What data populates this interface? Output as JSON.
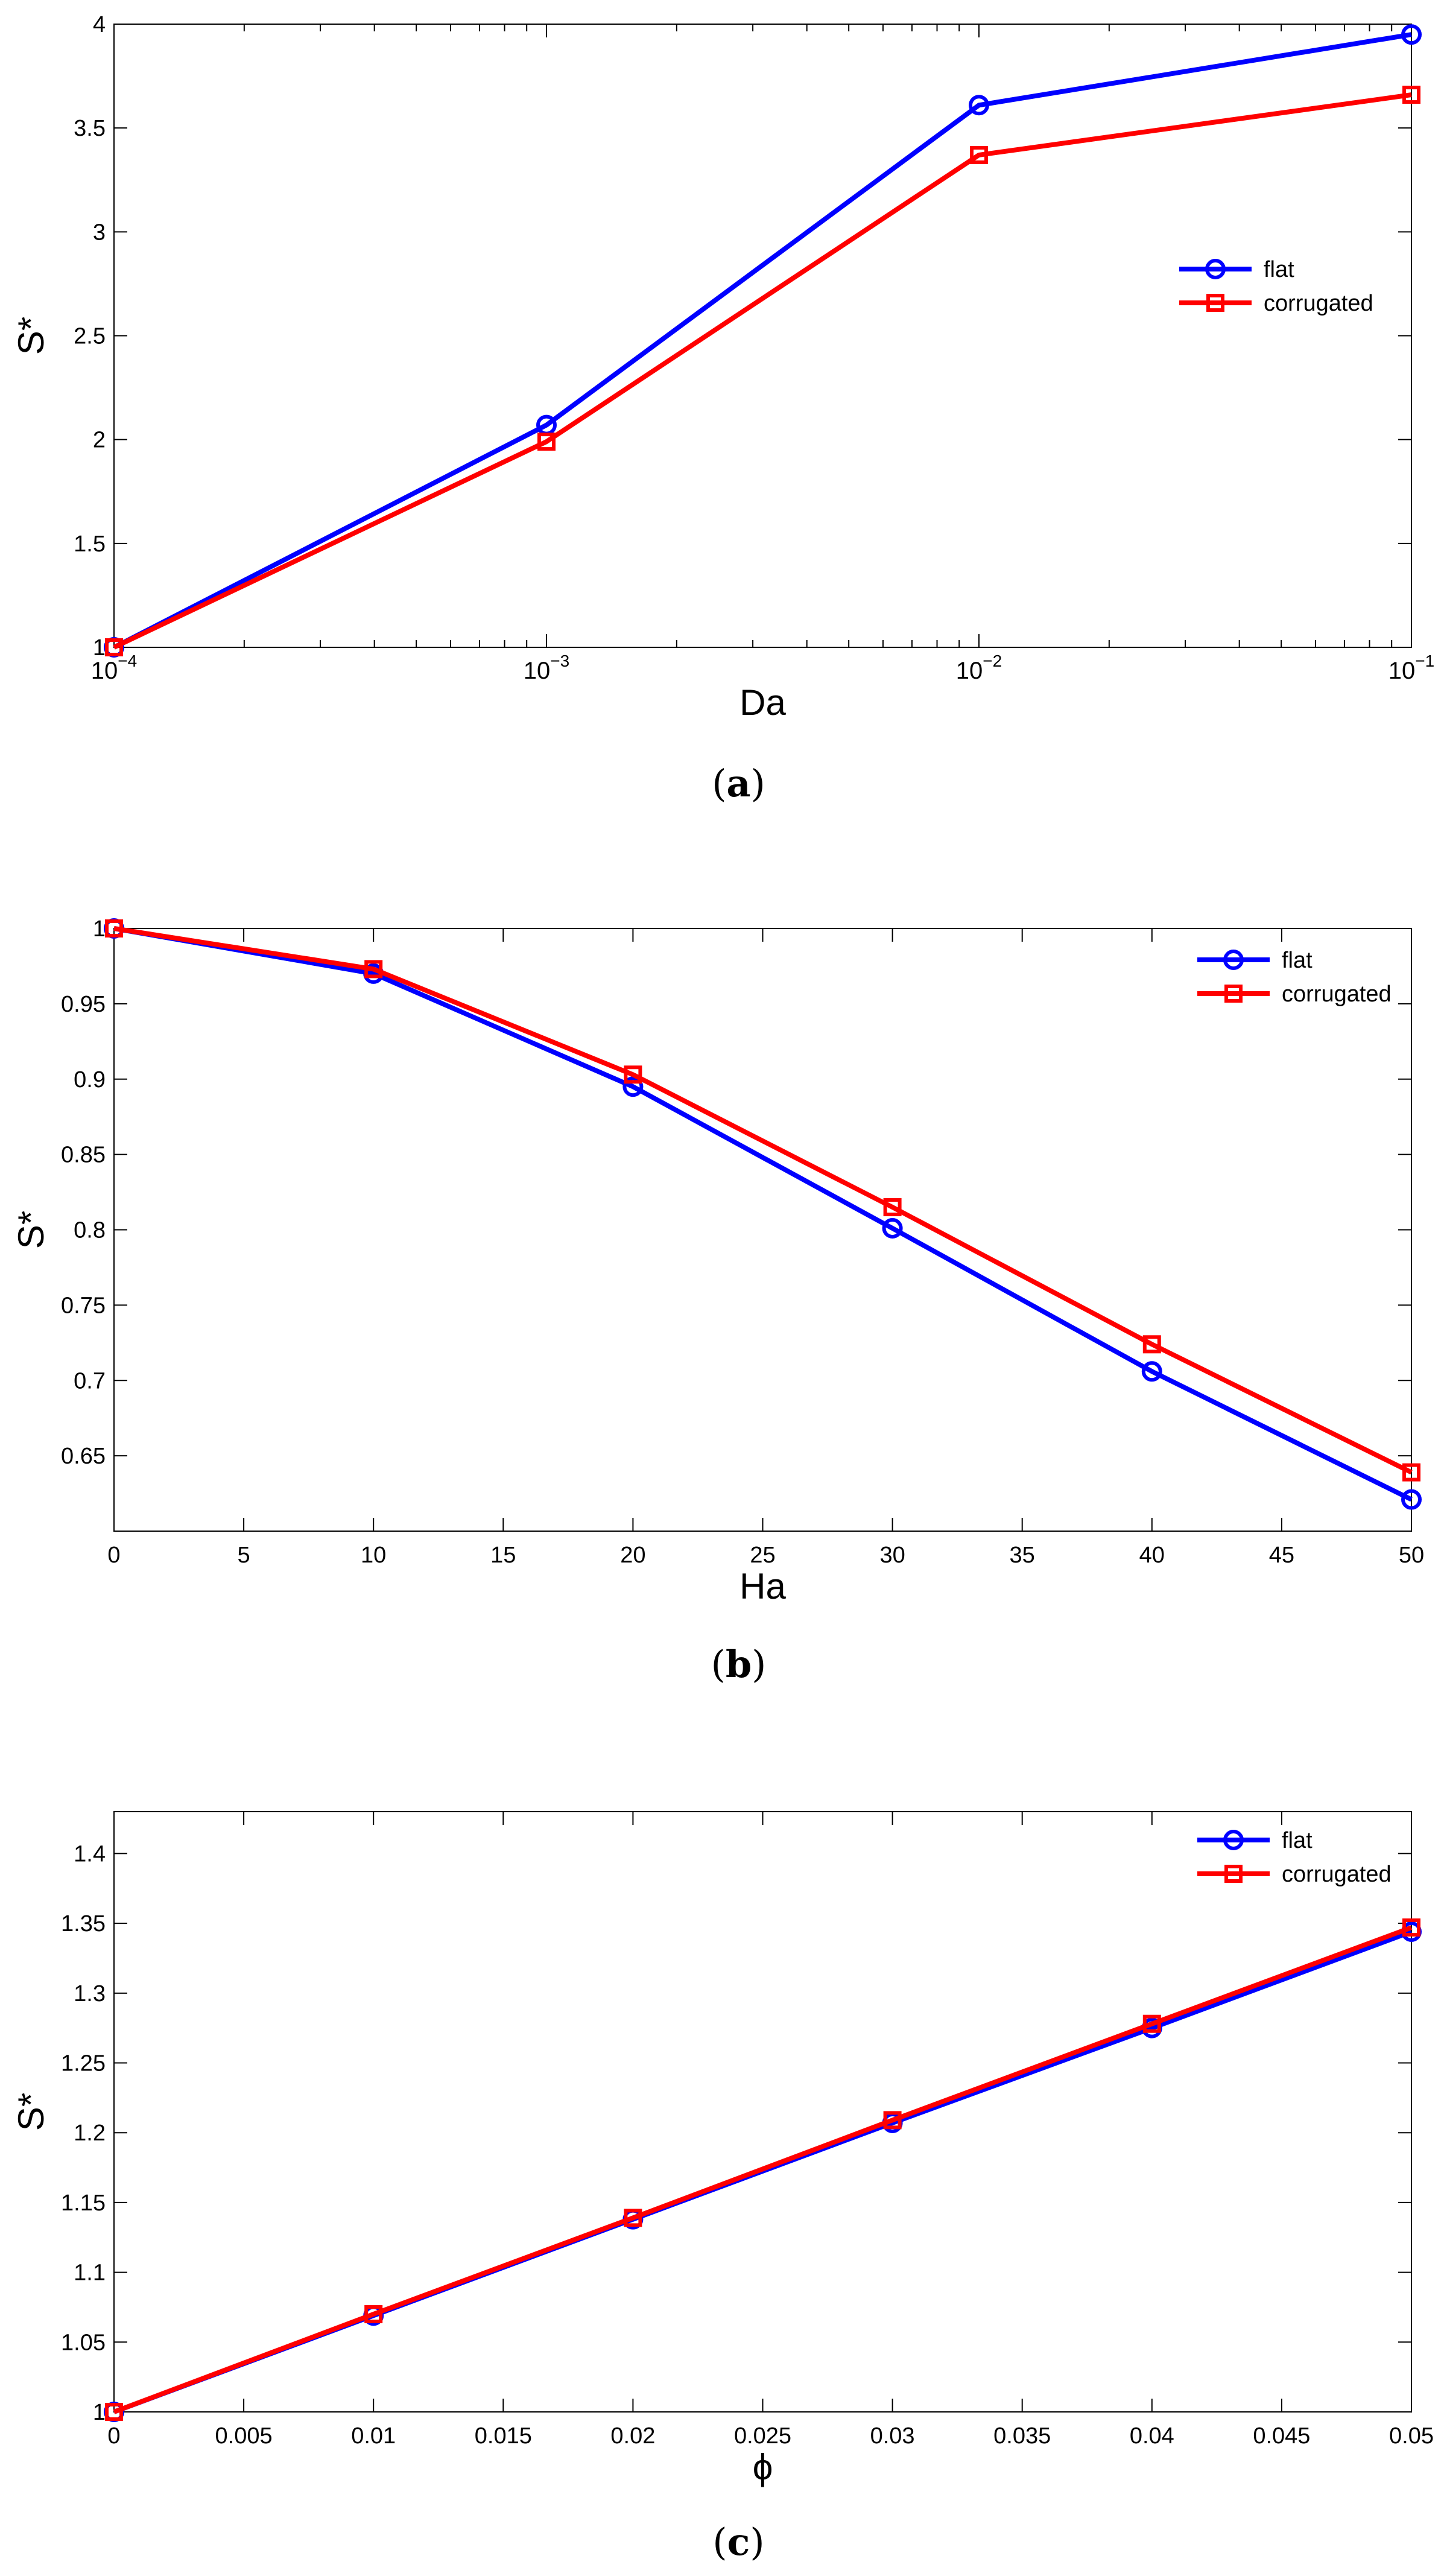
{
  "chart_data": [
    {
      "type": "line",
      "panel": "a",
      "caption": {
        "open": "(",
        "letter": "a",
        "close": ")"
      },
      "xscale": "log",
      "xlabel": "Da",
      "ylabel": "S*",
      "xlim": [
        0.0001,
        0.1
      ],
      "ylim": [
        1,
        4
      ],
      "xticks": [
        0.0001,
        0.001,
        0.01,
        0.1
      ],
      "xtick_labels": [
        {
          "base": "10",
          "exp": "−4"
        },
        {
          "base": "10",
          "exp": "−3"
        },
        {
          "base": "10",
          "exp": "−2"
        },
        {
          "base": "10",
          "exp": "−1"
        }
      ],
      "yticks": [
        1,
        1.5,
        2,
        2.5,
        3,
        3.5,
        4
      ],
      "ytick_labels": [
        "1",
        "1.5",
        "2",
        "2.5",
        "3",
        "3.5",
        "4"
      ],
      "grid": false,
      "legend_position": "right-middle",
      "x": [
        0.0001,
        0.001,
        0.01,
        0.1
      ],
      "series": [
        {
          "name": "flat",
          "marker": "circle",
          "color": "#0000ff",
          "values": [
            1.0,
            2.07,
            3.61,
            3.95
          ]
        },
        {
          "name": "corrugated",
          "marker": "square",
          "color": "#ff0000",
          "values": [
            1.0,
            1.99,
            3.37,
            3.66
          ]
        }
      ]
    },
    {
      "type": "line",
      "panel": "b",
      "caption": {
        "open": "(",
        "letter": "b",
        "close": ")"
      },
      "xscale": "linear",
      "xlabel": "Ha",
      "ylabel": "S*",
      "xlim": [
        0,
        50
      ],
      "ylim": [
        0.6,
        1
      ],
      "xticks": [
        0,
        5,
        10,
        15,
        20,
        25,
        30,
        35,
        40,
        45,
        50
      ],
      "xtick_labels": [
        "0",
        "5",
        "10",
        "15",
        "20",
        "25",
        "30",
        "35",
        "40",
        "45",
        "50"
      ],
      "yticks": [
        0.65,
        0.7,
        0.75,
        0.8,
        0.85,
        0.9,
        0.95,
        1
      ],
      "ytick_labels": [
        "0.65",
        "0.7",
        "0.75",
        "0.8",
        "0.85",
        "0.9",
        "0.95",
        "1"
      ],
      "grid": false,
      "legend_position": "top-right",
      "x": [
        0,
        10,
        20,
        30,
        40,
        50
      ],
      "series": [
        {
          "name": "flat",
          "marker": "circle",
          "color": "#0000ff",
          "values": [
            1.0,
            0.97,
            0.895,
            0.801,
            0.706,
            0.621
          ]
        },
        {
          "name": "corrugated",
          "marker": "square",
          "color": "#ff0000",
          "values": [
            1.0,
            0.973,
            0.903,
            0.815,
            0.724,
            0.639
          ]
        }
      ]
    },
    {
      "type": "line",
      "panel": "c",
      "caption": {
        "open": "(",
        "letter": "c",
        "close": ")"
      },
      "xscale": "linear",
      "xlabel": "ϕ",
      "ylabel": "S*",
      "xlim": [
        0,
        0.05
      ],
      "ylim": [
        1,
        1.43
      ],
      "xticks": [
        0,
        0.005,
        0.01,
        0.015,
        0.02,
        0.025,
        0.03,
        0.035,
        0.04,
        0.045,
        0.05
      ],
      "xtick_labels": [
        "0",
        "0.005",
        "0.01",
        "0.015",
        "0.02",
        "0.025",
        "0.03",
        "0.035",
        "0.04",
        "0.045",
        "0.05"
      ],
      "yticks": [
        1,
        1.05,
        1.1,
        1.15,
        1.2,
        1.25,
        1.3,
        1.35,
        1.4
      ],
      "ytick_labels": [
        "1",
        "1.05",
        "1.1",
        "1.15",
        "1.2",
        "1.25",
        "1.3",
        "1.35",
        "1.4"
      ],
      "grid": false,
      "legend_position": "top-right",
      "x": [
        0,
        0.01,
        0.02,
        0.03,
        0.04,
        0.05
      ],
      "series": [
        {
          "name": "flat",
          "marker": "circle",
          "color": "#0000ff",
          "values": [
            1.0,
            1.069,
            1.138,
            1.207,
            1.275,
            1.344
          ]
        },
        {
          "name": "corrugated",
          "marker": "square",
          "color": "#ff0000",
          "values": [
            1.0,
            1.07,
            1.139,
            1.209,
            1.278,
            1.347
          ]
        }
      ]
    }
  ]
}
